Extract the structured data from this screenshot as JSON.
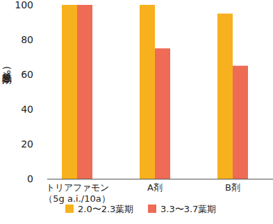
{
  "chart_data": {
    "type": "bar",
    "y_label": "除草効果(%)",
    "categories": [
      "トリアファモン\n（5g a.i./10a）",
      "A剤",
      "B剤"
    ],
    "series": [
      {
        "name": "2.0〜2.3葉期",
        "color": "#f7b11e",
        "values": [
          100,
          100,
          95
        ]
      },
      {
        "name": "3.3〜3.7葉期",
        "color": "#ee6b56",
        "values": [
          100,
          75,
          65
        ]
      }
    ],
    "ylim": [
      0,
      100
    ],
    "yticks": [
      0,
      20,
      40,
      60,
      80,
      100
    ],
    "grid": false,
    "legend": "bottom"
  }
}
